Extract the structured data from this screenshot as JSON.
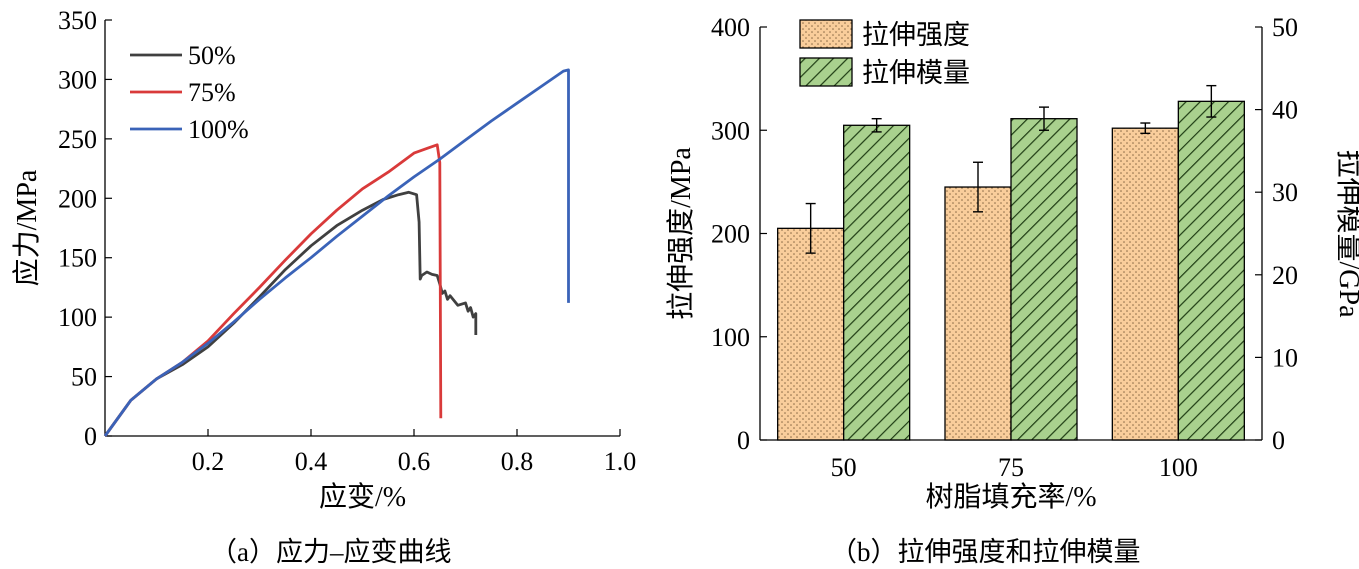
{
  "captions": {
    "a": "（a）应力–应变曲线",
    "b": "（b）拉伸强度和拉伸模量"
  },
  "chart_data": [
    {
      "id": "a",
      "type": "line",
      "xlabel": "应变/%",
      "ylabel": "应力/MPa",
      "xlim": [
        0,
        1.0
      ],
      "ylim": [
        0,
        350
      ],
      "xticks": [
        "0.2",
        "0.4",
        "0.6",
        "0.8",
        "1.0"
      ],
      "yticks": [
        "0",
        "50",
        "100",
        "150",
        "200",
        "250",
        "300",
        "350"
      ],
      "legend": "top-left",
      "grid": false,
      "series": [
        {
          "name": "50%",
          "color": "#404040",
          "x": [
            0,
            0.05,
            0.1,
            0.15,
            0.2,
            0.25,
            0.3,
            0.35,
            0.4,
            0.45,
            0.5,
            0.54,
            0.57,
            0.59,
            0.605,
            0.61,
            0.612,
            0.615,
            0.625,
            0.635,
            0.645,
            0.65,
            0.655,
            0.66,
            0.665,
            0.67,
            0.685,
            0.7,
            0.705,
            0.71,
            0.715,
            0.72,
            0.72
          ],
          "y": [
            0,
            30,
            48,
            60,
            75,
            95,
            117,
            140,
            160,
            177,
            190,
            199,
            203,
            205,
            203,
            180,
            132,
            135,
            138,
            136,
            135,
            128,
            120,
            122,
            115,
            118,
            110,
            112,
            105,
            108,
            100,
            103,
            85
          ]
        },
        {
          "name": "75%",
          "color": "#d93a3a",
          "x": [
            0,
            0.05,
            0.1,
            0.15,
            0.2,
            0.25,
            0.3,
            0.35,
            0.4,
            0.45,
            0.5,
            0.55,
            0.6,
            0.625,
            0.645,
            0.65,
            0.652
          ],
          "y": [
            0,
            30,
            48,
            62,
            80,
            103,
            125,
            148,
            170,
            190,
            208,
            222,
            238,
            242,
            245,
            230,
            15
          ]
        },
        {
          "name": "100%",
          "color": "#3a63b8",
          "x": [
            0,
            0.05,
            0.1,
            0.15,
            0.2,
            0.25,
            0.3,
            0.35,
            0.4,
            0.45,
            0.5,
            0.55,
            0.6,
            0.65,
            0.7,
            0.75,
            0.8,
            0.85,
            0.89,
            0.9,
            0.9
          ],
          "y": [
            0,
            30,
            48,
            62,
            78,
            96,
            115,
            133,
            150,
            168,
            185,
            202,
            218,
            233,
            249,
            265,
            280,
            295,
            307,
            308,
            112
          ]
        }
      ]
    },
    {
      "id": "b",
      "type": "bar",
      "xlabel": "树脂填充率/%",
      "ylabel": "拉伸强度/MPa",
      "y2label": "拉伸模量/GPa",
      "categories": [
        "50",
        "75",
        "100"
      ],
      "ylim": [
        0,
        400
      ],
      "y2lim": [
        0,
        50
      ],
      "yticks": [
        "0",
        "100",
        "200",
        "300",
        "400"
      ],
      "y2ticks": [
        "0",
        "10",
        "20",
        "30",
        "40",
        "50"
      ],
      "legend": "top-left",
      "grid": false,
      "series": [
        {
          "name": "拉伸强度",
          "axis": "left",
          "color": "#f9cd9b",
          "pattern": "dots",
          "values": [
            205,
            245,
            302
          ],
          "errors": [
            24,
            24,
            5
          ]
        },
        {
          "name": "拉伸模量",
          "axis": "right",
          "color": "#a9d18e",
          "pattern": "hatch",
          "values": [
            38.1,
            38.9,
            41.0
          ],
          "errors": [
            0.8,
            1.4,
            1.9
          ]
        }
      ]
    }
  ]
}
